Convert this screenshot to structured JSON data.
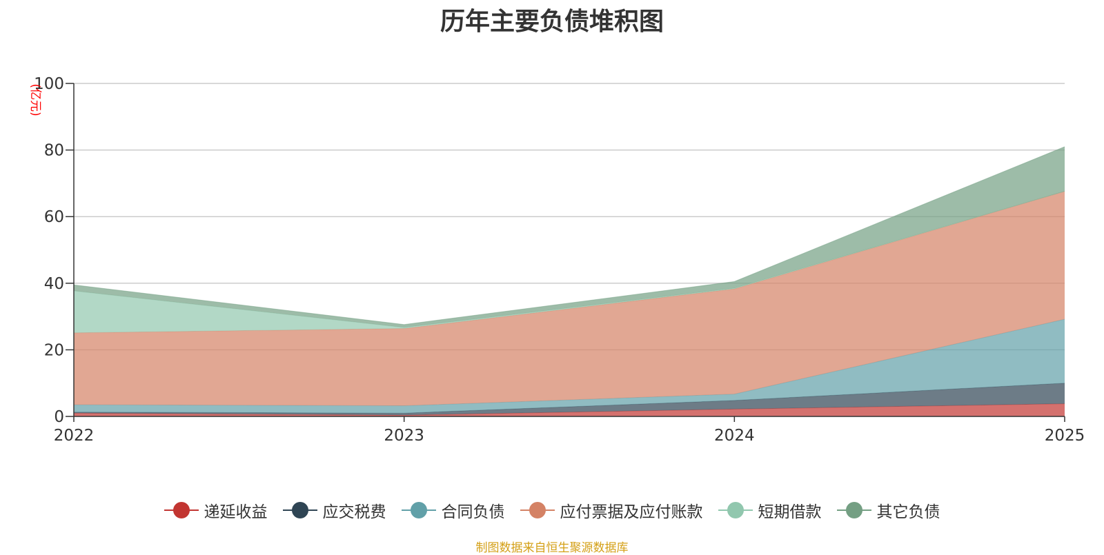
{
  "chart_data": {
    "type": "area",
    "stacked": true,
    "title": "历年主要负债堆积图",
    "ylabel": "(亿元)",
    "categories": [
      "2022",
      "2023",
      "2024",
      "2025"
    ],
    "ylim": [
      0,
      100
    ],
    "yticks": [
      0,
      20,
      40,
      60,
      80,
      100
    ],
    "series": [
      {
        "name": "递延收益",
        "color": "#c23531",
        "values": [
          1.0,
          0.4,
          2.2,
          3.8
        ]
      },
      {
        "name": "应交税费",
        "color": "#2f4554",
        "values": [
          0.3,
          0.6,
          2.6,
          6.2
        ]
      },
      {
        "name": "合同负债",
        "color": "#61a0a8",
        "values": [
          2.2,
          2.2,
          1.9,
          19.2
        ]
      },
      {
        "name": "应付票据及应付账款",
        "color": "#d48265",
        "values": [
          21.6,
          23.2,
          31.6,
          38.4
        ]
      },
      {
        "name": "短期借款",
        "color": "#91c7ae",
        "values": [
          12.6,
          0.3,
          0.2,
          0.0
        ]
      },
      {
        "name": "其它负债",
        "color": "#749f83",
        "values": [
          1.8,
          0.9,
          2.0,
          13.4
        ]
      }
    ],
    "legend_position": "bottom-center",
    "grid": true
  },
  "footer": {
    "source": "制图数据来自恒生聚源数据库"
  }
}
